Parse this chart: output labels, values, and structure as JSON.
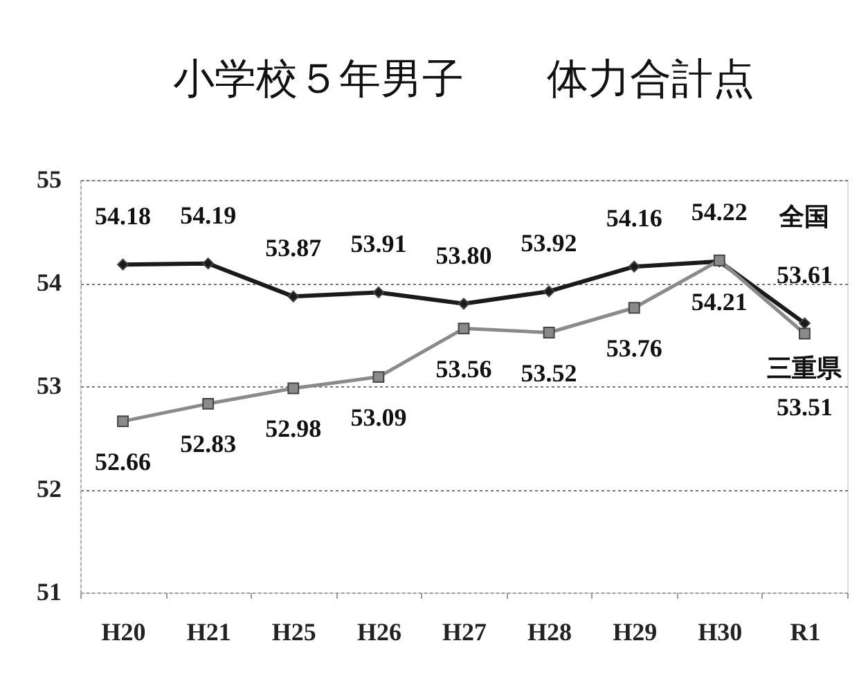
{
  "chart_data": {
    "type": "line",
    "title": "小学校５年男子　　体力合計点",
    "categories": [
      "H20",
      "H21",
      "H25",
      "H26",
      "H27",
      "H28",
      "H29",
      "H30",
      "R1"
    ],
    "series": [
      {
        "name": "全国",
        "color": "#1a1a1a",
        "marker": "diamond",
        "values": [
          54.18,
          54.19,
          53.87,
          53.91,
          53.8,
          53.92,
          54.16,
          54.21,
          53.61
        ],
        "value_labels": [
          "54.18",
          "54.19",
          "53.87",
          "53.91",
          "53.80",
          "53.92",
          "54.16",
          "54.21",
          "53.61"
        ]
      },
      {
        "name": "三重県",
        "color": "#8a8a8a",
        "marker": "square",
        "values": [
          52.66,
          52.83,
          52.98,
          53.09,
          53.56,
          53.52,
          53.76,
          54.22,
          53.51
        ],
        "value_labels": [
          "52.66",
          "52.83",
          "52.98",
          "53.09",
          "53.56",
          "53.52",
          "53.76",
          "54.22",
          "53.51"
        ]
      }
    ],
    "ylim": [
      51,
      55
    ],
    "yticks": [
      51,
      52,
      53,
      54,
      55
    ],
    "grid": "y",
    "legend": false
  }
}
